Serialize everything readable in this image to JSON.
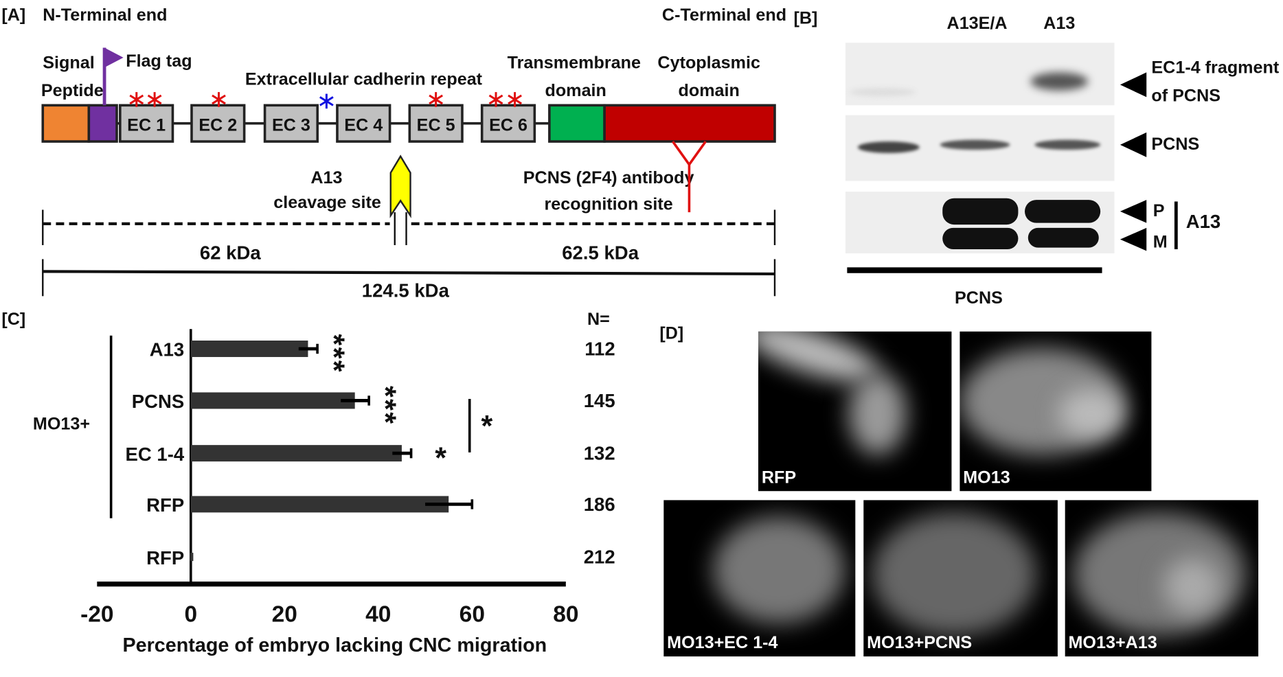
{
  "panelA": {
    "label": "[A]",
    "n_terminal": "N-Terminal end",
    "c_terminal": "C-Terminal end",
    "signal_peptide": [
      "Signal",
      "Peptide"
    ],
    "flag_tag": "Flag tag",
    "extracellular": "Extracellular cadherin repeat",
    "transmembrane": [
      "Transmembrane",
      "domain"
    ],
    "cytoplasmic": [
      "Cytoplasmic",
      "domain"
    ],
    "ec_domains": [
      "EC 1",
      "EC 2",
      "EC 3",
      "EC 4",
      "EC 5",
      "EC 6"
    ],
    "cleavage": [
      "A13",
      "cleavage site"
    ],
    "antibody": [
      "PCNS (2F4) antibody",
      "recognition site"
    ],
    "left_fragment": "62 kDa",
    "right_fragment": "62.5 kDa",
    "full_length": "124.5 kDa",
    "colors": {
      "signal": "#ef8432",
      "flag": "#7030a0",
      "ec": "#c0c0c0",
      "transmembrane": "#00b050",
      "cytoplasmic": "#c00000",
      "cleavage_arrow": "#ffff00",
      "star_red": "#e01010",
      "star_blue": "#1010e0",
      "antibody": "#e01010"
    }
  },
  "panelB": {
    "label": "[B]",
    "lanes": [
      "A13E/A",
      "A13"
    ],
    "row_labels": [
      "EC1-4 fragment",
      "of PCNS",
      "PCNS",
      "P",
      "M",
      "A13"
    ],
    "bottom_label": "PCNS"
  },
  "panelC": {
    "label": "[C]",
    "group_label": "MO13+",
    "n_header": "N="
  },
  "chart_data": {
    "type": "bar",
    "orientation": "horizontal",
    "categories": [
      "A13",
      "PCNS",
      "EC 1-4",
      "RFP",
      "RFP"
    ],
    "group": "MO13+",
    "group_members": [
      "A13",
      "PCNS",
      "EC 1-4",
      "RFP"
    ],
    "values": [
      25,
      35,
      45,
      55,
      0
    ],
    "errors": [
      2,
      3,
      2,
      5,
      0
    ],
    "significance": [
      "***",
      "***",
      "*",
      "",
      ""
    ],
    "bracket": {
      "between": [
        "PCNS",
        "EC 1-4"
      ],
      "label": "*"
    },
    "n": [
      "112",
      "145",
      "132",
      "186",
      "212"
    ],
    "xlabel": "Percentage of embryo lacking CNC migration",
    "xlim": [
      -20,
      80
    ],
    "xticks": [
      "-20",
      "0",
      "20",
      "40",
      "60",
      "80"
    ],
    "bar_color": "#333333",
    "grid": false
  },
  "panelD": {
    "label": "[D]",
    "images": [
      "RFP",
      "MO13",
      "MO13+EC 1-4",
      "MO13+PCNS",
      "MO13+A13"
    ]
  }
}
